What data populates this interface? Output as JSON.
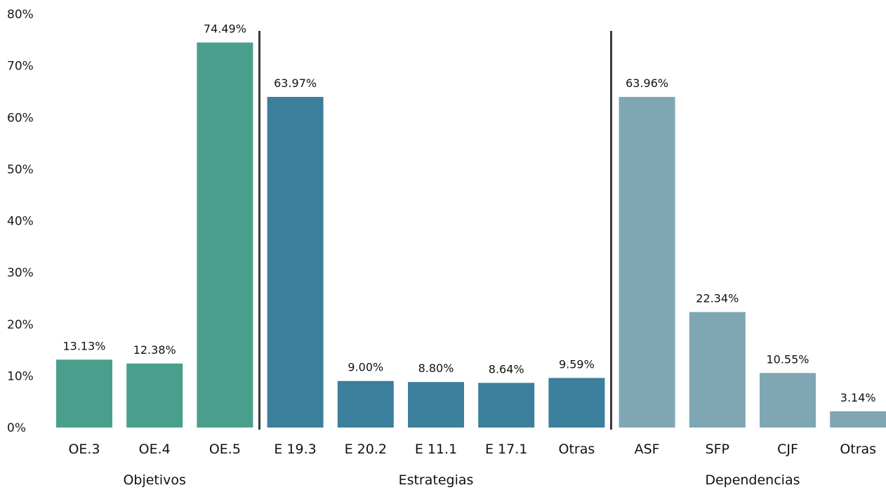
{
  "chart_data": {
    "type": "bar",
    "ylim": [
      0,
      80
    ],
    "yticks": [
      "0%",
      "10%",
      "20%",
      "30%",
      "40%",
      "50%",
      "60%",
      "70%",
      "80%"
    ],
    "grid": false,
    "legend": "none",
    "groups": [
      {
        "label": "Objetivos",
        "color": "#4a9f8c",
        "bars": [
          {
            "category": "OE.3",
            "value": 13.13,
            "label": "13.13%"
          },
          {
            "category": "OE.4",
            "value": 12.38,
            "label": "12.38%"
          },
          {
            "category": "OE.5",
            "value": 74.49,
            "label": "74.49%"
          }
        ]
      },
      {
        "label": "Estrategias",
        "color": "#3c7f9c",
        "bars": [
          {
            "category": "E 19.3",
            "value": 63.97,
            "label": "63.97%"
          },
          {
            "category": "E 20.2",
            "value": 9.0,
            "label": "9.00%"
          },
          {
            "category": "E 11.1",
            "value": 8.8,
            "label": "8.80%"
          },
          {
            "category": "E 17.1",
            "value": 8.64,
            "label": "8.64%"
          },
          {
            "category": "Otras",
            "value": 9.59,
            "label": "9.59%"
          }
        ]
      },
      {
        "label": "Dependencias",
        "color": "#7ea6b3",
        "bars": [
          {
            "category": "ASF",
            "value": 63.96,
            "label": "63.96%"
          },
          {
            "category": "SFP",
            "value": 22.34,
            "label": "22.34%"
          },
          {
            "category": "CJF",
            "value": 10.55,
            "label": "10.55%"
          },
          {
            "category": "Otras",
            "value": 3.14,
            "label": "3.14%"
          }
        ]
      }
    ]
  }
}
